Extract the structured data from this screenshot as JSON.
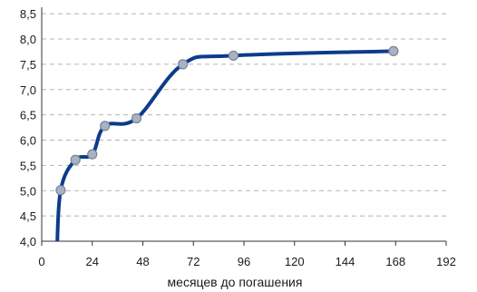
{
  "chart_data": {
    "type": "line",
    "xlabel": "месяцев до погашения",
    "ylabel": "",
    "xlim": [
      0,
      192
    ],
    "ylim": [
      4.0,
      8.5
    ],
    "x_ticks": [
      "0",
      "24",
      "48",
      "72",
      "96",
      "120",
      "144",
      "168",
      "192"
    ],
    "y_ticks": [
      "4,0",
      "4,5",
      "5,0",
      "5,5",
      "6,0",
      "6,5",
      "7,0",
      "7,5",
      "8,0",
      "8,5"
    ],
    "grid": "horizontal dashed",
    "series": [
      {
        "x": [
          9,
          16,
          24,
          30,
          45,
          67,
          91,
          167
        ],
        "y": [
          5.01,
          5.61,
          5.72,
          6.28,
          6.43,
          7.5,
          7.67,
          7.76
        ],
        "color": "#0d3b8c",
        "marker_color": "#a8b2c2"
      }
    ]
  }
}
